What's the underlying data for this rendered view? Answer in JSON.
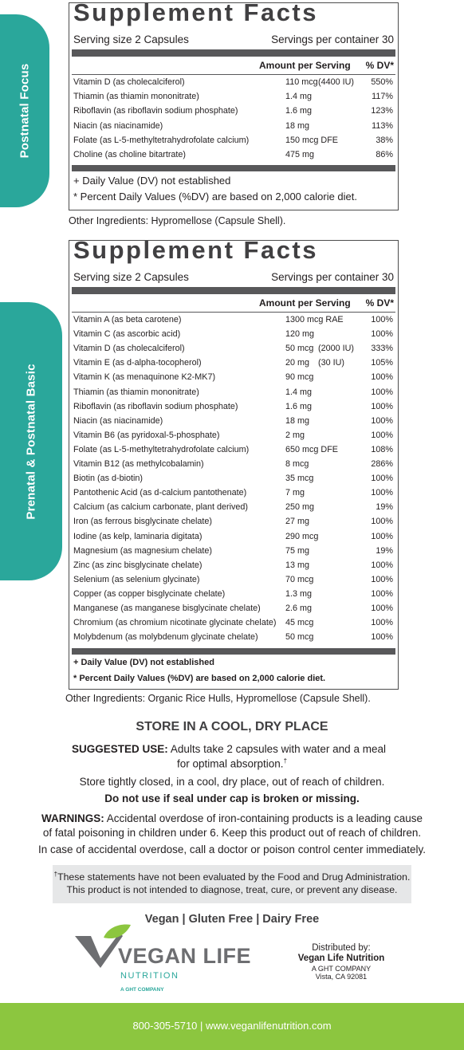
{
  "tabs": {
    "top": "Postnatal Focus",
    "bottom": "Prenatal & Postnatal Basic"
  },
  "panel1": {
    "title": "Supplement Facts",
    "serving_size": "Serving size 2 Capsules",
    "servings_per_container": "Servings per container 30",
    "amount_header": "Amount per Serving",
    "dv_header": "% DV*",
    "rows": [
      {
        "name": "Vitamin D (as cholecalciferol)",
        "amount": "110 mcg",
        "iu": "(4400 IU)",
        "dv": "550%"
      },
      {
        "name": "Thiamin (as thiamin mononitrate)",
        "amount": "1.4 mg",
        "iu": "",
        "dv": "117%"
      },
      {
        "name": "Riboflavin (as riboflavin sodium phosphate)",
        "amount": "1.6 mg",
        "iu": "",
        "dv": "123%"
      },
      {
        "name": "Niacin (as niacinamide)",
        "amount": "18 mg",
        "iu": "",
        "dv": "113%"
      },
      {
        "name": "Folate (as L-5-methyltetrahydrofolate calcium)",
        "amount": "150 mcg DFE",
        "iu": "",
        "dv": "38%"
      },
      {
        "name": "Choline (as choline bitartrate)",
        "amount": "475 mg",
        "iu": "",
        "dv": "86%"
      }
    ],
    "footnote1": "+ Daily Value (DV) not established",
    "footnote2": "* Percent Daily Values (%DV) are based on 2,000 calorie diet.",
    "other_ingredients": "Other Ingredients:  Hypromellose (Capsule Shell)."
  },
  "panel2": {
    "title": "Supplement Facts",
    "serving_size": "Serving size 2 Capsules",
    "servings_per_container": "Servings per container 30",
    "amount_header": "Amount per Serving",
    "dv_header": "% DV*",
    "rows": [
      {
        "name": "Vitamin A (as beta carotene)",
        "amount": "1300 mcg RAE",
        "iu": "",
        "dv": "100%"
      },
      {
        "name": "Vitamin C (as ascorbic acid)",
        "amount": "120 mg",
        "iu": "",
        "dv": "100%"
      },
      {
        "name": "Vitamin D (as cholecalciferol)",
        "amount": "50 mcg",
        "iu": "(2000 IU)",
        "dv": "333%"
      },
      {
        "name": "Vitamin E (as d-alpha-tocopherol)",
        "amount": "20 mg",
        "iu": "(30 IU)",
        "dv": "105%"
      },
      {
        "name": "Vitamin K (as menaquinone K2-MK7)",
        "amount": "90 mcg",
        "iu": "",
        "dv": "100%"
      },
      {
        "name": "Thiamin (as thiamin mononitrate)",
        "amount": "1.4 mg",
        "iu": "",
        "dv": "100%"
      },
      {
        "name": "Riboflavin (as riboflavin sodium phosphate)",
        "amount": "1.6 mg",
        "iu": "",
        "dv": "100%"
      },
      {
        "name": "Niacin (as niacinamide)",
        "amount": "18 mg",
        "iu": "",
        "dv": "100%"
      },
      {
        "name": "Vitamin B6 (as pyridoxal-5-phosphate)",
        "amount": "2 mg",
        "iu": "",
        "dv": "100%"
      },
      {
        "name": "Folate (as L-5-methyltetrahydrofolate calcium)",
        "amount": "650 mcg DFE",
        "iu": "",
        "dv": "108%"
      },
      {
        "name": "Vitamin B12 (as methylcobalamin)",
        "amount": "8 mcg",
        "iu": "",
        "dv": "286%"
      },
      {
        "name": "Biotin (as d-biotin)",
        "amount": "35 mcg",
        "iu": "",
        "dv": "100%"
      },
      {
        "name": "Pantothenic Acid (as d-calcium pantothenate)",
        "amount": "7 mg",
        "iu": "",
        "dv": "100%"
      },
      {
        "name": "Calcium (as calcium carbonate, plant derived)",
        "amount": "250 mg",
        "iu": "",
        "dv": "19%"
      },
      {
        "name": "Iron (as ferrous bisglycinate chelate)",
        "amount": "27 mg",
        "iu": "",
        "dv": "100%"
      },
      {
        "name": "Iodine (as kelp, laminaria digitata)",
        "amount": "290 mcg",
        "iu": "",
        "dv": "100%"
      },
      {
        "name": "Magnesium (as magnesium chelate)",
        "amount": "75 mg",
        "iu": "",
        "dv": "19%"
      },
      {
        "name": "Zinc (as zinc bisglycinate chelate)",
        "amount": "13 mg",
        "iu": "",
        "dv": "100%"
      },
      {
        "name": "Selenium (as selenium glycinate)",
        "amount": "70 mcg",
        "iu": "",
        "dv": "100%"
      },
      {
        "name": "Copper (as copper bisglycinate chelate)",
        "amount": "1.3 mg",
        "iu": "",
        "dv": "100%"
      },
      {
        "name": "Manganese (as manganese  bisglycinate chelate)",
        "amount": "2.6 mg",
        "iu": "",
        "dv": "100%"
      },
      {
        "name": "Chromium (as chromium nicotinate glycinate chelate)",
        "amount": "45 mcg",
        "iu": "",
        "dv": "100%"
      },
      {
        "name": "Molybdenum (as molybdenum glycinate chelate)",
        "amount": "50 mcg",
        "iu": "",
        "dv": "100%"
      }
    ],
    "footnote1": "+ Daily Value (DV) not established",
    "footnote2": "* Percent Daily Values (%DV) are based on 2,000 calorie diet.",
    "other_ingredients": "Other Ingredients: Organic Rice Hulls, Hypromellose (Capsule Shell)."
  },
  "storage_heading": "STORE IN A COOL, DRY PLACE",
  "suggested_use": {
    "label": "SUGGESTED USE:",
    "text": " Adults take 2 capsules with water and a meal",
    "line2": "for optimal absorption.",
    "dagger": "†"
  },
  "store_instruction": "Store tightly closed, in a cool, dry place, out of reach of children.",
  "seal_warning": "Do not use if seal under cap is broken or missing.",
  "warnings": {
    "label": "WARNINGS:",
    "line1": " Accidental overdose of iron-containing products is a leading cause",
    "line2": "of fatal poisoning in children under 6.  Keep this product out of reach of children.",
    "line3": "In case of accidental overdose, call a doctor or poison control center immediately."
  },
  "disclaimer": {
    "dagger": "†",
    "line1": "These statements have not been evaluated by the Food and Drug Administration.",
    "line2": "This product is not intended to diagnose, treat, cure, or prevent any disease."
  },
  "diet_claims": "Vegan | Gluten Free | Dairy Free",
  "logo": {
    "name": "VEGAN LIFE",
    "sub": "NUTRITION",
    "company": "A GHT COMPANY"
  },
  "distributor": {
    "label": "Distributed by:",
    "name": "Vegan Life Nutrition",
    "company": "A GHT COMPANY",
    "address": "Vista, CA 92081"
  },
  "contact": "800-305-5710 | www.veganlifenutrition.com",
  "colors": {
    "teal": "#2aa79b",
    "green": "#8cc63f",
    "logo_gray": "#6d6e71"
  }
}
